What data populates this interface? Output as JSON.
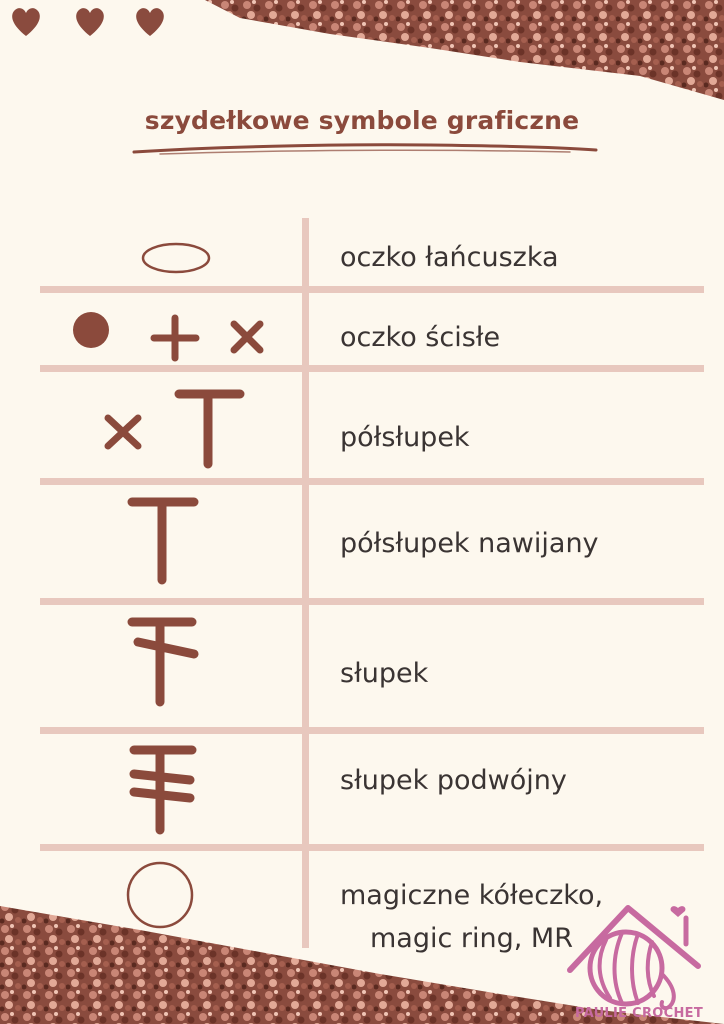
{
  "title": "szydełkowe symbole graficzne",
  "colors": {
    "background": "#fdf8ee",
    "accent": "#8b4a3c",
    "grid": "#e8c8be",
    "text": "#3a3433",
    "logo": "#c76aa0"
  },
  "decorations": {
    "corner_icons": [
      "heart-icon",
      "heart-icon",
      "heart-icon"
    ]
  },
  "rows": [
    {
      "symbol": "chain-oval-icon",
      "label": "oczko łańcuszka"
    },
    {
      "symbol": "single-crochet-icons",
      "label": "oczko ścisłe"
    },
    {
      "symbol": "half-stitch-icon",
      "label": "półsłupek"
    },
    {
      "symbol": "half-double-icon",
      "label": "półsłupek nawijany"
    },
    {
      "symbol": "double-crochet-icon",
      "label": "słupek"
    },
    {
      "symbol": "treble-crochet-icon",
      "label": "słupek podwójny"
    },
    {
      "symbol": "magic-ring-icon",
      "label": "magiczne kółeczko,",
      "label_line2": "magic ring, MR"
    }
  ],
  "logo": {
    "text": "PAULIE CROCHET",
    "icon": "yarn-house-logo-icon"
  }
}
